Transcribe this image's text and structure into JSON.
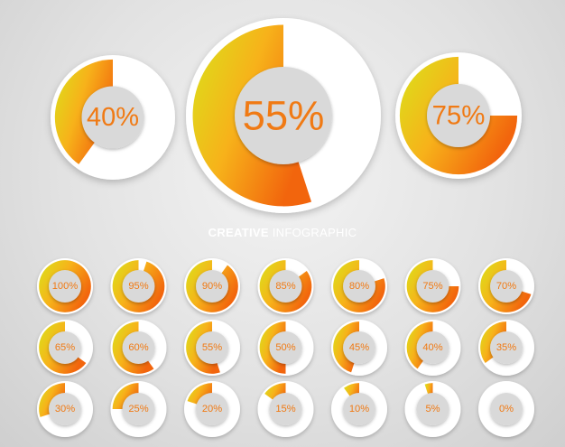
{
  "colors": {
    "accent_start": "#d9e31a",
    "accent_mid": "#f7b21a",
    "accent_end": "#f2650d",
    "label": "#f07a14"
  },
  "heading": {
    "bold": "CREATIVE",
    "light": "INFOGRAPHIC"
  },
  "chart_data": [
    {
      "type": "pie",
      "group": "large",
      "items": [
        {
          "value": 40,
          "label": "40%"
        },
        {
          "value": 55,
          "label": "55%"
        },
        {
          "value": 75,
          "label": "75%"
        }
      ]
    },
    {
      "type": "pie",
      "group": "small",
      "items": [
        {
          "value": 100,
          "label": "100%"
        },
        {
          "value": 95,
          "label": "95%"
        },
        {
          "value": 90,
          "label": "90%"
        },
        {
          "value": 85,
          "label": "85%"
        },
        {
          "value": 80,
          "label": "80%"
        },
        {
          "value": 75,
          "label": "75%"
        },
        {
          "value": 70,
          "label": "70%"
        },
        {
          "value": 65,
          "label": "65%"
        },
        {
          "value": 60,
          "label": "60%"
        },
        {
          "value": 55,
          "label": "55%"
        },
        {
          "value": 50,
          "label": "50%"
        },
        {
          "value": 45,
          "label": "45%"
        },
        {
          "value": 40,
          "label": "40%"
        },
        {
          "value": 35,
          "label": "35%"
        },
        {
          "value": 30,
          "label": "30%"
        },
        {
          "value": 25,
          "label": "25%"
        },
        {
          "value": 20,
          "label": "20%"
        },
        {
          "value": 15,
          "label": "15%"
        },
        {
          "value": 10,
          "label": "10%"
        },
        {
          "value": 5,
          "label": "5%"
        },
        {
          "value": 0,
          "label": "0%"
        }
      ]
    }
  ]
}
